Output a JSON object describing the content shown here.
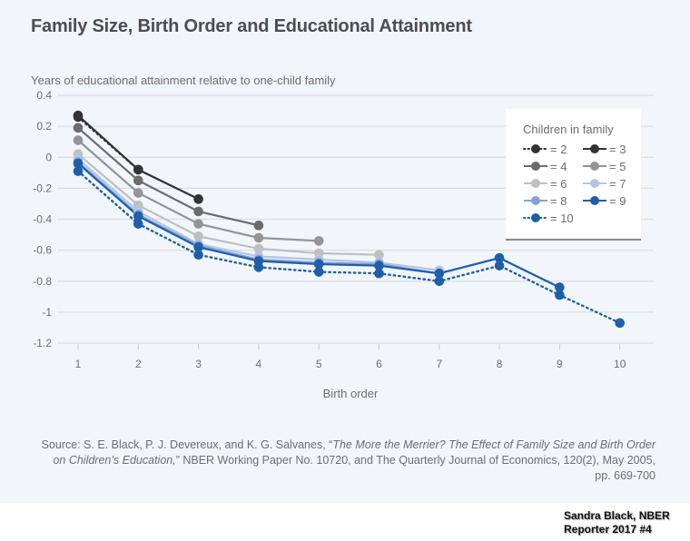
{
  "chart_data": {
    "type": "line",
    "title": "Family Size, Birth Order and Educational Attainment",
    "ylabel": "Years of educational attainment relative to one-child family",
    "xlabel": "Birth order",
    "x": [
      1,
      2,
      3,
      4,
      5,
      6,
      7,
      8,
      9,
      10
    ],
    "xticks": [
      "1",
      "2",
      "3",
      "4",
      "5",
      "6",
      "7",
      "8",
      "9",
      "10"
    ],
    "ylim": [
      -1.2,
      0.4
    ],
    "yticks": [
      "0.4",
      "0.2",
      "0",
      "-0.2",
      "-0.4",
      "-0.6",
      "-0.8",
      "-1",
      "-1.2"
    ],
    "ytick_values": [
      0.4,
      0.2,
      0,
      -0.2,
      -0.4,
      -0.6,
      -0.8,
      -1,
      -1.2
    ],
    "grid": true,
    "legend_title": "Children in family",
    "legend_position": "top-right",
    "series": [
      {
        "name": "= 2",
        "color": "#333336",
        "style": "dotted",
        "values": [
          0.26,
          -0.08
        ]
      },
      {
        "name": "= 3",
        "color": "#333336",
        "style": "solid",
        "values": [
          0.27,
          -0.08,
          -0.27
        ]
      },
      {
        "name": "= 4",
        "color": "#6b6b6e",
        "style": "solid",
        "values": [
          0.19,
          -0.15,
          -0.35,
          -0.44
        ]
      },
      {
        "name": "= 5",
        "color": "#949497",
        "style": "solid",
        "values": [
          0.11,
          -0.23,
          -0.43,
          -0.52,
          -0.54
        ]
      },
      {
        "name": "= 6",
        "color": "#bfbfc2",
        "style": "solid",
        "values": [
          0.02,
          -0.31,
          -0.51,
          -0.59,
          -0.62,
          -0.63
        ]
      },
      {
        "name": "= 7",
        "color": "#b4c5e4",
        "style": "solid",
        "values": [
          -0.01,
          -0.35,
          -0.56,
          -0.64,
          -0.66,
          -0.68,
          -0.73
        ]
      },
      {
        "name": "= 8",
        "color": "#86a3d6",
        "style": "solid",
        "values": [
          -0.03,
          -0.37,
          -0.57,
          -0.66,
          -0.68,
          -0.69,
          -0.75,
          -0.65
        ]
      },
      {
        "name": "= 9",
        "color": "#1f5fa8",
        "style": "solid",
        "values": [
          -0.04,
          -0.38,
          -0.58,
          -0.67,
          -0.69,
          -0.7,
          -0.75,
          -0.65,
          -0.84
        ]
      },
      {
        "name": "= 10",
        "color": "#1f5fa8",
        "style": "dotted",
        "values": [
          -0.09,
          -0.43,
          -0.63,
          -0.71,
          -0.74,
          -0.75,
          -0.8,
          -0.7,
          -0.89,
          -1.07
        ]
      }
    ]
  },
  "source": {
    "prefix": "Source: S. E. Black, P. J. Devereux, and K. G. Salvanes, “",
    "title_italic": "The More the Merrier? The Effect of Family Size and Birth Order on Children’s Education,",
    "suffix": "” NBER Working Paper No. 10720, and The Quarterly Journal of Economics, 120(2), May 2005, pp. 669-700"
  },
  "credit": {
    "line1": "Sandra Black, NBER",
    "line2": "Reporter 2017 #4"
  }
}
